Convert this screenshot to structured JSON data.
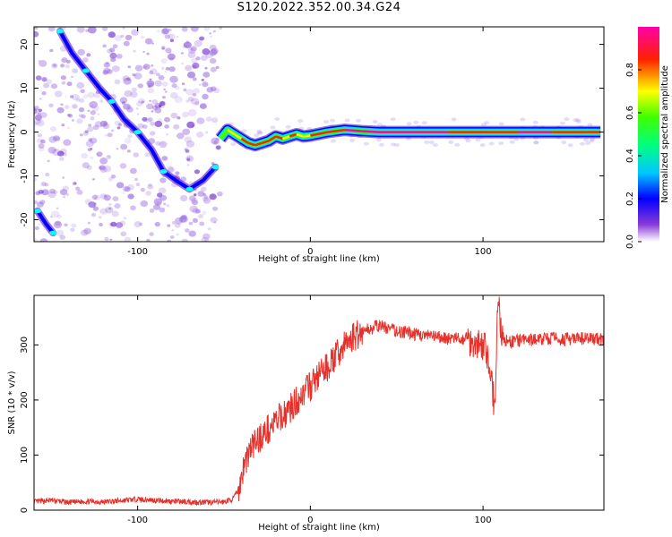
{
  "title": "S120.2022.352.00.34.G24",
  "colors": {
    "snr_line": "#e8302a",
    "frame": "#000000",
    "heatmap_speckle": "#8a2be2",
    "colormap": [
      "#ff00ff",
      "#ff0000",
      "#ffff00",
      "#00ff00",
      "#00ffff",
      "#0000ff",
      "#6600cc",
      "#ffffff"
    ]
  },
  "chart_data": [
    {
      "type": "heatmap",
      "title": "",
      "xlabel": "Height of straight line (km)",
      "ylabel": "Frequency (Hz)",
      "xlim": [
        -160,
        170
      ],
      "ylim": [
        -25,
        24
      ],
      "xticks": [
        -100,
        0,
        100
      ],
      "xtick_labels": [
        "-100",
        "0",
        "100"
      ],
      "yticks": [
        -20,
        -10,
        0,
        10,
        20
      ],
      "ytick_labels": [
        "-20",
        "-10",
        "0",
        "10",
        "20"
      ],
      "colorbar": {
        "label": "Normalized spectral amplitude",
        "range": [
          0.0,
          1.0
        ],
        "ticks": [
          0.0,
          0.2,
          0.4,
          0.6,
          0.8
        ],
        "tick_labels": [
          "0.0",
          "0.2",
          "0.4",
          "0.6",
          "0.8"
        ]
      },
      "ridge_upper_left": {
        "x": [
          -145,
          -138,
          -130,
          -122,
          -115,
          -108,
          -100,
          -92,
          -85,
          -78,
          -70,
          -62,
          -55
        ],
        "y": [
          23,
          18,
          14,
          10,
          7,
          3,
          0,
          -4,
          -9,
          -11,
          -13,
          -11,
          -8
        ]
      },
      "ridge_lower_left": {
        "x": [
          -158,
          -153,
          -149
        ],
        "y": [
          -18,
          -21,
          -23
        ]
      },
      "main_band": {
        "x": [
          -52,
          -48,
          -44,
          -40,
          -36,
          -32,
          -28,
          -24,
          -20,
          -16,
          -12,
          -8,
          -4,
          0,
          10,
          20,
          30,
          40,
          60,
          80,
          100,
          120,
          140,
          160,
          168
        ],
        "y": [
          -1.5,
          0.5,
          -0.5,
          -1.5,
          -2.5,
          -3,
          -2.5,
          -2,
          -1,
          -1.5,
          -1,
          -0.5,
          -1,
          -0.8,
          0,
          0.5,
          0.2,
          0,
          0,
          0,
          0,
          0,
          0,
          0,
          0
        ],
        "amplitude": [
          0.5,
          0.6,
          0.7,
          0.75,
          0.8,
          0.85,
          0.85,
          0.8,
          0.75,
          0.7,
          0.75,
          0.7,
          0.7,
          0.75,
          0.85,
          0.9,
          0.9,
          0.9,
          0.9,
          0.85,
          0.85,
          0.9,
          0.85,
          0.85,
          0.8
        ]
      }
    },
    {
      "type": "line",
      "title": "",
      "xlabel": "Height of straight line (km)",
      "ylabel": "SNR (10 * v/v)",
      "xlim": [
        -160,
        170
      ],
      "ylim": [
        0,
        390
      ],
      "xticks": [
        -100,
        0,
        100
      ],
      "xtick_labels": [
        "-100",
        "0",
        "100"
      ],
      "yticks": [
        0,
        100,
        200,
        300
      ],
      "ytick_labels": [
        "0",
        "100",
        "200",
        "300"
      ],
      "series": [
        {
          "x": [
            -160,
            -150,
            -140,
            -130,
            -120,
            -110,
            -100,
            -90,
            -80,
            -70,
            -60,
            -50,
            -45,
            -42,
            -40,
            -38,
            -35,
            -30,
            -25,
            -20,
            -15,
            -10,
            -5,
            0,
            5,
            10,
            15,
            20,
            25,
            30,
            35,
            40,
            45,
            50,
            60,
            70,
            80,
            90,
            95,
            100,
            103,
            105,
            107,
            108,
            109,
            110,
            112,
            115,
            120,
            130,
            140,
            150,
            160,
            170
          ],
          "y": [
            15,
            18,
            14,
            16,
            15,
            17,
            20,
            18,
            16,
            15,
            14,
            15,
            20,
            35,
            60,
            85,
            110,
            130,
            145,
            160,
            175,
            190,
            210,
            225,
            245,
            260,
            280,
            300,
            315,
            325,
            330,
            335,
            330,
            325,
            320,
            315,
            312,
            310,
            305,
            300,
            280,
            230,
            180,
            340,
            380,
            330,
            310,
            305,
            308,
            310,
            312,
            310,
            312,
            310
          ]
        }
      ]
    }
  ]
}
